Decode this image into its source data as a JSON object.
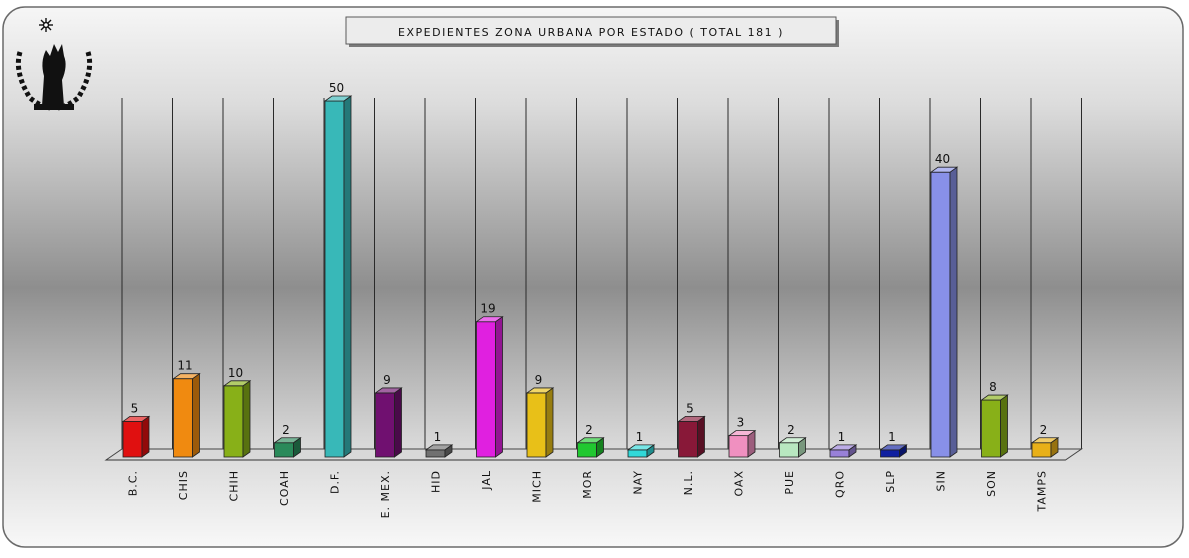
{
  "chart_data": {
    "type": "bar",
    "title": "EXPEDIENTES ZONA URBANA POR ESTADO ( TOTAL 181 )",
    "xlabel": "",
    "ylabel": "",
    "categories": [
      "B.C.",
      "CHIS",
      "CHIH",
      "COAH",
      "D.F.",
      "E. MEX.",
      "HID",
      "JAL",
      "MICH",
      "MOR",
      "NAY",
      "N.L.",
      "OAX",
      "PUE",
      "QRO",
      "SLP",
      "SIN",
      "SON",
      "TAMPS"
    ],
    "values": [
      5,
      11,
      10,
      2,
      50,
      9,
      1,
      19,
      9,
      2,
      1,
      5,
      3,
      2,
      1,
      1,
      40,
      8,
      2
    ],
    "ylim": [
      0,
      50
    ],
    "grid": "vertical",
    "legend": "none",
    "colors": [
      "#e01010",
      "#f08a10",
      "#88b018",
      "#2a8a5a",
      "#38b8b8",
      "#701070",
      "#707070",
      "#e020e0",
      "#e8c018",
      "#20c830",
      "#30d8d8",
      "#881838",
      "#f090c0",
      "#b8e8c0",
      "#9880d8",
      "#1020a0",
      "#8890e8",
      "#88b018",
      "#e8b018"
    ]
  },
  "logo": {
    "name": "hand-emblem-logo"
  }
}
